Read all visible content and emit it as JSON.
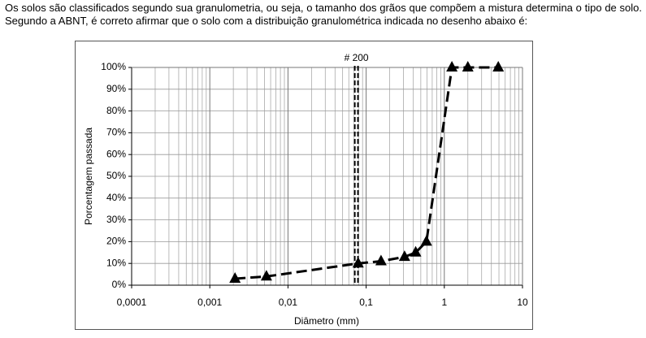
{
  "question": "Os solos são classificados segundo sua granulometria, ou seja, o tamanho dos grãos que compõem a mistura determina o tipo de solo. Segundo a ABNT, é correto afirmar que o solo com a distribuição granulométrica indicada no desenho abaixo é:",
  "chart_data": {
    "type": "line",
    "log_x": true,
    "grid": true,
    "x_label": "Diâmetro (mm)",
    "y_label": "Porcentagem passada",
    "x": [
      0.0021,
      0.0053,
      0.079,
      0.155,
      0.31,
      0.43,
      0.59,
      1.25,
      2.0,
      4.9
    ],
    "series": [
      {
        "name": "Porcentagem passada",
        "color": "#000000",
        "values": [
          3,
          4,
          10,
          11,
          13,
          15,
          20,
          100,
          100,
          100
        ]
      }
    ],
    "xlim": [
      0.0001,
      10
    ],
    "xticks": [
      {
        "value": 0.0001,
        "label": "0,0001"
      },
      {
        "value": 0.001,
        "label": "0,001"
      },
      {
        "value": 0.01,
        "label": "0,01"
      },
      {
        "value": 0.1,
        "label": "0,1"
      },
      1,
      10
    ],
    "ylim": [
      0,
      100
    ],
    "yticks": [
      {
        "value": 0,
        "label": "0%"
      },
      {
        "value": 10,
        "label": "10%"
      },
      {
        "value": 20,
        "label": "20%"
      },
      {
        "value": 30,
        "label": "30%"
      },
      {
        "value": 40,
        "label": "40%"
      },
      {
        "value": 50,
        "label": "50%"
      },
      {
        "value": 60,
        "label": "60%"
      },
      {
        "value": 70,
        "label": "70%"
      },
      {
        "value": 80,
        "label": "80%"
      },
      {
        "value": 90,
        "label": "90%"
      },
      {
        "value": 100,
        "label": "100%"
      }
    ],
    "annotation": {
      "text": "# 200",
      "x": 0.075
    }
  }
}
